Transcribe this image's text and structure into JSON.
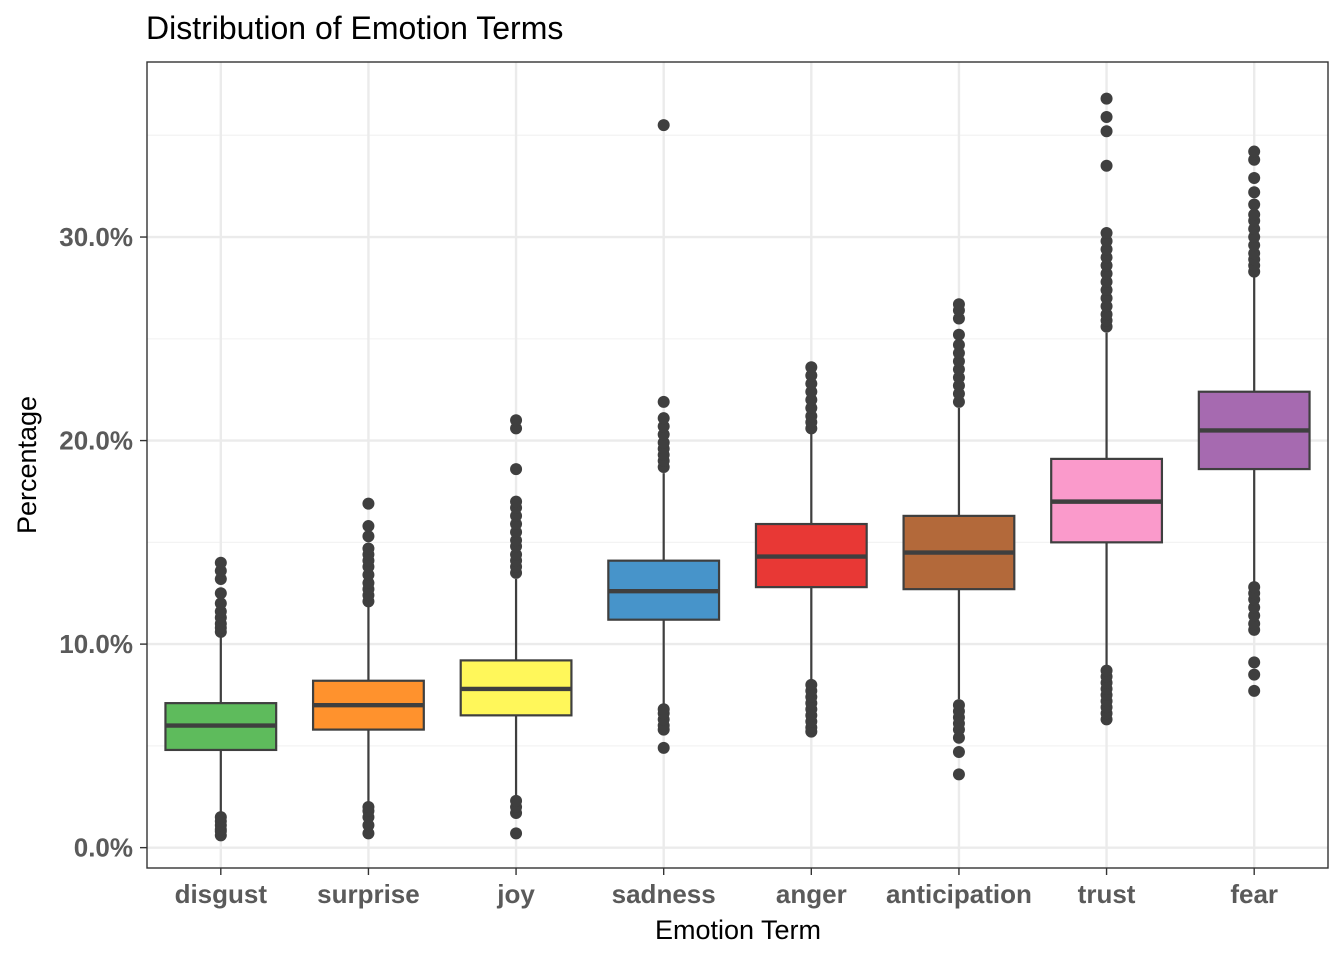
{
  "chart_data": {
    "type": "boxplot",
    "title": "Distribution of Emotion Terms",
    "xlabel": "Emotion Term",
    "ylabel": "Percentage",
    "ylim": [
      -1.0,
      38.6
    ],
    "yticks": [
      0,
      10,
      20,
      30
    ],
    "ytick_labels": [
      "0.0%",
      "10.0%",
      "20.0%",
      "30.0%"
    ],
    "grid": true,
    "legend": "none",
    "categories": [
      "disgust",
      "surprise",
      "joy",
      "sadness",
      "anger",
      "anticipation",
      "trust",
      "fear"
    ],
    "boxes": [
      {
        "name": "disgust",
        "color": "#5EBB5C",
        "whisker_low": 1.6,
        "q1": 4.8,
        "median": 6.0,
        "q3": 7.1,
        "whisker_high": 10.4,
        "outliers": [
          0.6,
          0.8,
          0.9,
          1.1,
          1.3,
          1.5,
          10.6,
          10.8,
          11.0,
          11.3,
          11.6,
          12.0,
          12.5,
          13.2,
          13.6,
          14.0
        ]
      },
      {
        "name": "surprise",
        "color": "#FF922D",
        "whisker_low": 2.2,
        "q1": 5.8,
        "median": 7.0,
        "q3": 8.2,
        "whisker_high": 11.9,
        "outliers": [
          0.7,
          1.1,
          1.5,
          1.8,
          2.0,
          12.1,
          12.4,
          12.7,
          13.0,
          13.4,
          13.8,
          14.1,
          14.4,
          14.7,
          15.3,
          15.8,
          16.9
        ]
      },
      {
        "name": "joy",
        "color": "#FFF75A",
        "whisker_low": 2.5,
        "q1": 6.5,
        "median": 7.8,
        "q3": 9.2,
        "whisker_high": 13.2,
        "outliers": [
          0.7,
          1.7,
          2.0,
          2.3,
          13.5,
          13.8,
          14.1,
          14.4,
          14.8,
          15.1,
          15.5,
          15.9,
          16.3,
          16.7,
          17.0,
          18.6,
          20.6,
          21.0
        ]
      },
      {
        "name": "sadness",
        "color": "#4794CA",
        "whisker_low": 7.0,
        "q1": 11.2,
        "median": 12.6,
        "q3": 14.1,
        "whisker_high": 18.4,
        "outliers": [
          4.9,
          5.8,
          6.0,
          6.3,
          6.6,
          6.8,
          18.7,
          19.0,
          19.3,
          19.6,
          19.9,
          20.3,
          20.7,
          21.1,
          21.9,
          35.5
        ]
      },
      {
        "name": "anger",
        "color": "#E83835",
        "whisker_low": 8.2,
        "q1": 12.8,
        "median": 14.3,
        "q3": 15.9,
        "whisker_high": 20.4,
        "outliers": [
          5.7,
          5.9,
          6.2,
          6.5,
          6.8,
          7.1,
          7.4,
          7.7,
          8.0,
          20.6,
          20.9,
          21.2,
          21.6,
          22.0,
          22.4,
          22.8,
          23.2,
          23.6
        ]
      },
      {
        "name": "anticipation",
        "color": "#B3693A",
        "whisker_low": 7.3,
        "q1": 12.7,
        "median": 14.5,
        "q3": 16.3,
        "whisker_high": 21.6,
        "outliers": [
          3.6,
          4.7,
          5.4,
          5.8,
          6.1,
          6.4,
          6.7,
          7.0,
          21.9,
          22.3,
          22.7,
          23.1,
          23.5,
          23.9,
          24.3,
          24.7,
          25.2,
          26.0,
          26.4,
          26.7
        ]
      },
      {
        "name": "trust",
        "color": "#FA9ACB",
        "whisker_low": 8.8,
        "q1": 15.0,
        "median": 17.0,
        "q3": 19.1,
        "whisker_high": 25.3,
        "outliers": [
          6.3,
          6.6,
          6.9,
          7.2,
          7.5,
          7.8,
          8.1,
          8.4,
          8.7,
          25.6,
          25.9,
          26.2,
          26.6,
          27.0,
          27.4,
          27.8,
          28.2,
          28.6,
          29.0,
          29.4,
          29.8,
          30.2,
          33.5,
          35.2,
          35.9,
          36.8
        ]
      },
      {
        "name": "fear",
        "color": "#A66AB0",
        "whisker_low": 13.0,
        "q1": 18.6,
        "median": 20.5,
        "q3": 22.4,
        "whisker_high": 28.1,
        "outliers": [
          7.7,
          8.5,
          9.1,
          10.7,
          11.0,
          11.4,
          11.8,
          12.2,
          12.5,
          12.8,
          28.3,
          28.6,
          28.9,
          29.2,
          29.6,
          30.0,
          30.4,
          30.8,
          31.1,
          31.6,
          32.2,
          32.9,
          33.8,
          34.2
        ]
      }
    ]
  }
}
